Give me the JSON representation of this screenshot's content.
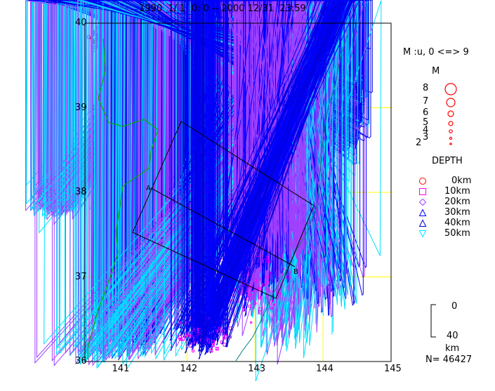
{
  "header": {
    "title": "1990  1/ 1  0: 0 -- 2000 12/31  23:59"
  },
  "map": {
    "lat_ticks": [
      "40",
      "39",
      "38",
      "37",
      "36"
    ],
    "lon_ticks": [
      "141",
      "142",
      "143",
      "144",
      "145"
    ],
    "lat_range": [
      36,
      40
    ],
    "lon_range": [
      140.5,
      145
    ],
    "grid_color": "#ffff00",
    "coast_color": "#00b000",
    "trench_color": "#008080",
    "section_labels": {
      "a": "A",
      "b": "B"
    }
  },
  "legend": {
    "magnitude_title": "M :u, 0 <=> 9",
    "magnitude_header": "M",
    "magnitudes": [
      "8",
      "7",
      "6",
      "5",
      "4",
      "3",
      "2"
    ],
    "magnitude_color": "#ff0000",
    "depth_title": "DEPTH",
    "depths": [
      {
        "label": "0km",
        "shape": "circle",
        "color": "#ff0000"
      },
      {
        "label": "10km",
        "shape": "square",
        "color": "#ff00ff"
      },
      {
        "label": "20km",
        "shape": "diamond",
        "color": "#a040ff"
      },
      {
        "label": "30km",
        "shape": "triangle-up",
        "color": "#0000ff"
      },
      {
        "label": "40km",
        "shape": "triangle-up",
        "color": "#0000dd"
      },
      {
        "label": "50km",
        "shape": "triangle-down",
        "color": "#00e0ff"
      }
    ],
    "scale_top": "0",
    "scale_bottom": "40",
    "scale_unit": "km",
    "count": "N= 46427"
  }
}
